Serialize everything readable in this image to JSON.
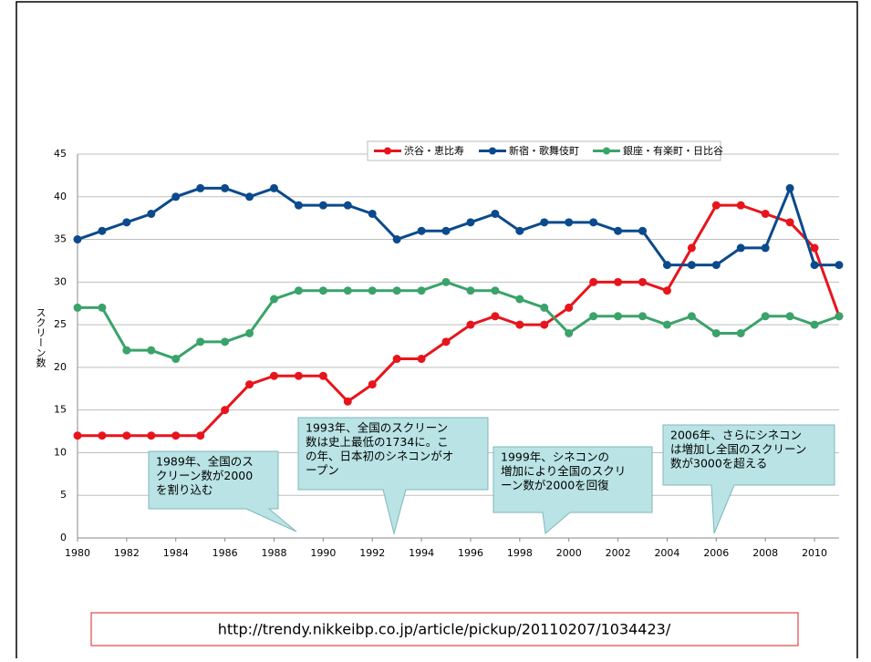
{
  "chart_data": {
    "type": "line",
    "ylabel": "スクリーン数",
    "x": [
      1980,
      1981,
      1982,
      1983,
      1984,
      1985,
      1986,
      1987,
      1988,
      1989,
      1990,
      1991,
      1992,
      1993,
      1994,
      1995,
      1996,
      1997,
      1998,
      1999,
      2000,
      2001,
      2002,
      2003,
      2004,
      2005,
      2006,
      2007,
      2008,
      2009,
      2010,
      2011
    ],
    "series": [
      {
        "name": "渋谷・恵比寿",
        "color": "#e8141c",
        "values": [
          12,
          12,
          12,
          12,
          12,
          12,
          15,
          18,
          19,
          19,
          19,
          16,
          18,
          21,
          21,
          23,
          25,
          26,
          25,
          25,
          27,
          30,
          30,
          30,
          29,
          34,
          39,
          39,
          38,
          37,
          34,
          26
        ]
      },
      {
        "name": "新宿・歌舞伎町",
        "color": "#0b4a8c",
        "values": [
          35,
          36,
          37,
          38,
          40,
          41,
          41,
          40,
          41,
          39,
          39,
          39,
          38,
          35,
          36,
          36,
          37,
          38,
          36,
          37,
          37,
          37,
          36,
          36,
          32,
          32,
          32,
          34,
          34,
          41,
          32,
          32
        ]
      },
      {
        "name": "銀座・有楽町・日比谷",
        "color": "#3aa36a",
        "values": [
          27,
          27,
          22,
          22,
          21,
          23,
          23,
          24,
          28,
          29,
          29,
          29,
          29,
          29,
          29,
          30,
          29,
          29,
          28,
          27,
          24,
          26,
          26,
          26,
          25,
          26,
          24,
          24,
          26,
          26,
          25,
          26
        ]
      }
    ],
    "xlim": [
      1980,
      2011
    ],
    "xticks": [
      1980,
      1982,
      1984,
      1986,
      1988,
      1990,
      1992,
      1994,
      1996,
      1998,
      2000,
      2002,
      2004,
      2006,
      2008,
      2010
    ],
    "ylim": [
      0,
      45
    ],
    "yticks": [
      0,
      5,
      10,
      15,
      20,
      25,
      30,
      35,
      40,
      45
    ],
    "grid": true,
    "legend": "top",
    "annotations": [
      [
        "1989年、全国のス",
        "クリーン数が2000",
        "を割り込む"
      ],
      [
        "1993年、全国のスクリーン",
        "数は史上最低の1734に。こ",
        "の年、日本初のシネコンがオ",
        "ープン"
      ],
      [
        "1999年、シネコンの",
        "増加により全国のスクリ",
        "ーン数が2000を回復"
      ],
      [
        "2006年、さらにシネコン",
        "は増加し全国のスクリーン",
        "数が3000を超える"
      ]
    ],
    "source": "http://trendy.nikkeibp.co.jp/article/pickup/20110207/1034423/"
  }
}
